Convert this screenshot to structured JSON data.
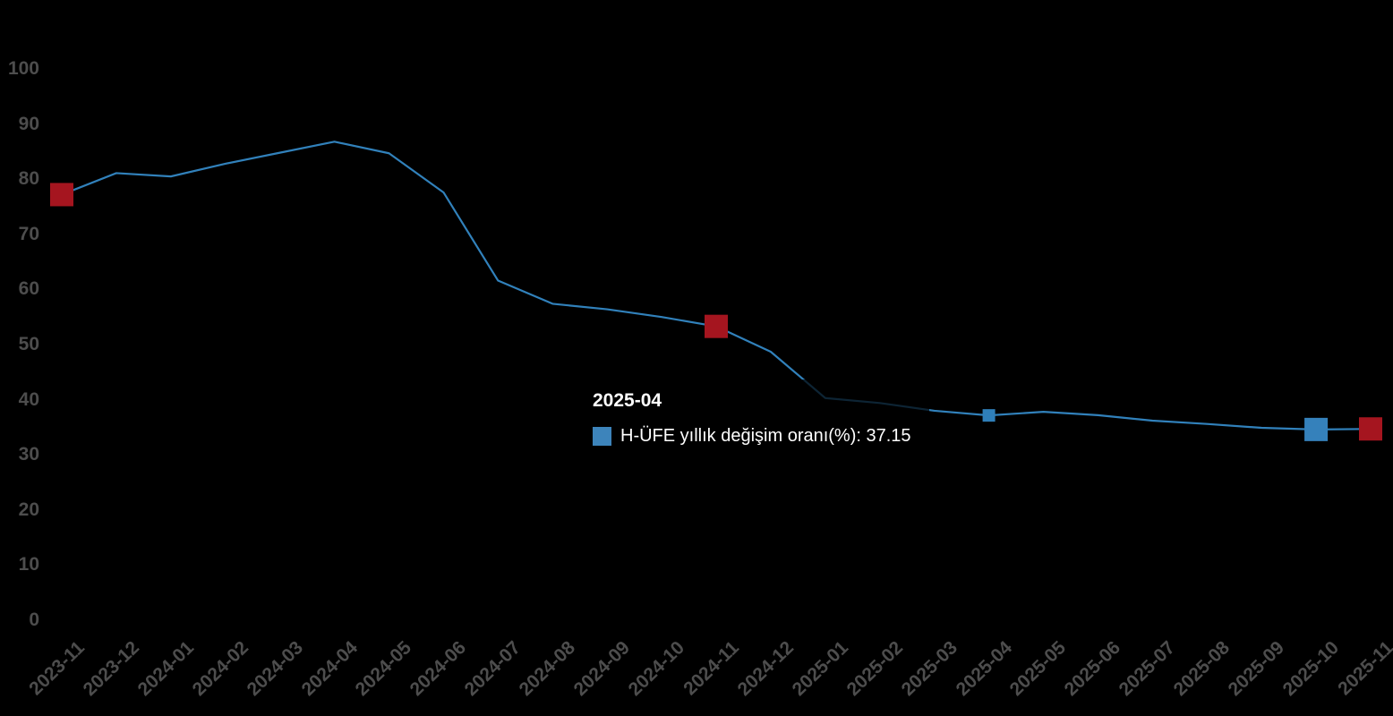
{
  "app": {
    "background_color": "#000000",
    "axis_label_color": "#4d4d4d"
  },
  "chart_data": {
    "type": "line",
    "title": "",
    "xlabel": "",
    "ylabel": "",
    "ylim": [
      0,
      100
    ],
    "y_ticks": [
      0,
      10,
      20,
      30,
      40,
      50,
      60,
      70,
      80,
      90,
      100
    ],
    "grid": false,
    "legend_position": "none",
    "line_color": "#3181bb",
    "line_width": 2.2,
    "x": [
      "2023-11",
      "2023-12",
      "2024-01",
      "2024-02",
      "2024-03",
      "2024-04",
      "2024-05",
      "2024-06",
      "2024-07",
      "2024-08",
      "2024-09",
      "2024-10",
      "2024-11",
      "2024-12",
      "2025-01",
      "2025-02",
      "2025-03",
      "2025-04",
      "2025-05",
      "2025-06",
      "2025-07",
      "2025-08",
      "2025-09",
      "2025-10",
      "2025-11"
    ],
    "series": [
      {
        "name": "H-ÜFE yıllık değişim oranı(%)",
        "values": [
          77.2,
          81.1,
          80.5,
          82.8,
          84.8,
          86.8,
          84.7,
          77.6,
          61.6,
          57.4,
          56.4,
          55.0,
          53.3,
          48.7,
          40.3,
          39.4,
          38.0,
          37.15,
          37.8,
          37.2,
          36.2,
          35.6,
          34.9,
          34.6,
          34.7
        ]
      }
    ],
    "markers": [
      {
        "x": "2023-11",
        "index": 0,
        "value": 77.2,
        "color": "#a5151f",
        "size": 26,
        "shape": "square"
      },
      {
        "x": "2024-11",
        "index": 12,
        "value": 53.3,
        "color": "#a5151f",
        "size": 26,
        "shape": "square"
      },
      {
        "x": "2025-10",
        "index": 23,
        "value": 34.6,
        "color": "#3581bb",
        "size": 26,
        "shape": "square"
      },
      {
        "x": "2025-11",
        "index": 24,
        "value": 34.7,
        "color": "#a5151f",
        "size": 26,
        "shape": "square"
      }
    ],
    "hover_point": {
      "x": "2025-04",
      "index": 17,
      "value": 37.15,
      "color": "#2f7fb9",
      "size": 14,
      "shape": "square"
    }
  },
  "tooltip": {
    "title": "2025-04",
    "marker_color": "#3d84bb",
    "series_name": "H-ÜFE yıllık değişim oranı(%)",
    "value": "37.15",
    "text": "H-ÜFE yıllık değişim oranı(%): 37.15"
  }
}
